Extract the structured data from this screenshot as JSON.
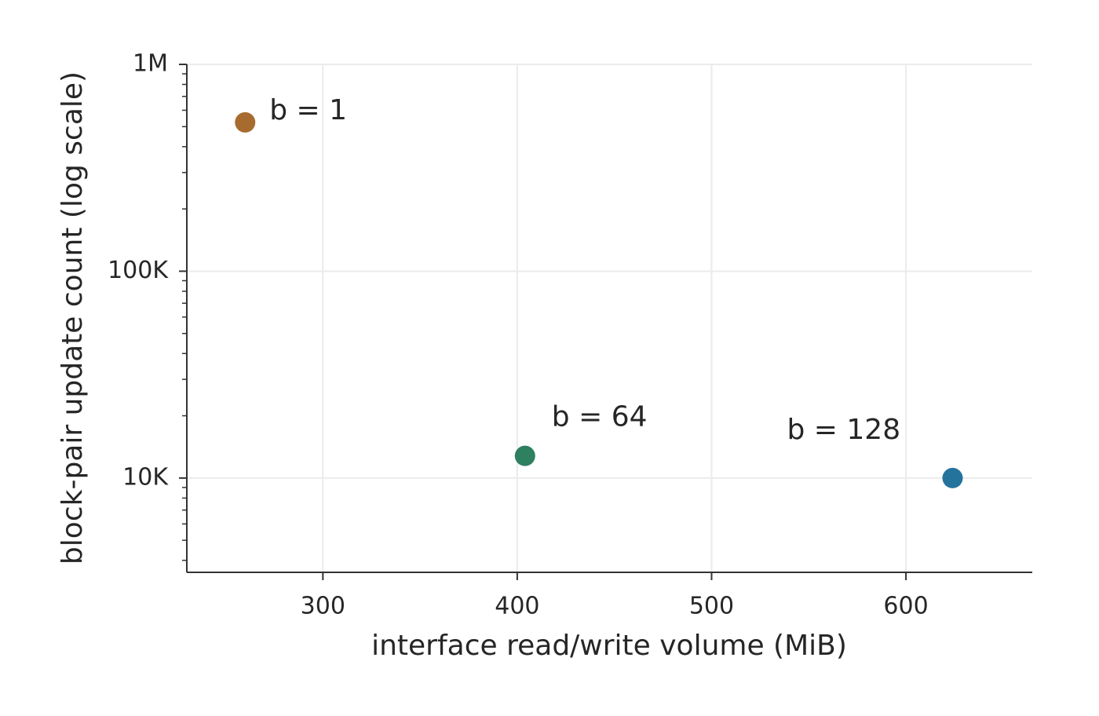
{
  "chart_data": {
    "type": "scatter",
    "x_label": "interface read/write volume (MiB)",
    "y_label": "block-pair update count (log scale)",
    "series": [
      {
        "name": "b = 1",
        "color": "#a86b2f",
        "x": [
          260
        ],
        "values": [
          524288
        ]
      },
      {
        "name": "b = 64",
        "color": "#2e8060",
        "x": [
          404
        ],
        "values": [
          12800
        ]
      },
      {
        "name": "b = 128",
        "color": "#24739c",
        "x": [
          624
        ],
        "values": [
          10000
        ]
      }
    ],
    "xlim": [
      230,
      665
    ],
    "xticks": [
      300,
      400,
      500,
      600
    ],
    "ylim": [
      3500,
      1000000
    ],
    "y_scale": "log",
    "yticks": [
      {
        "value": 10000,
        "label": "10K"
      },
      {
        "value": 100000,
        "label": "100K"
      },
      {
        "value": 1000000,
        "label": "1M"
      }
    ],
    "yminorticks": [
      4000,
      5000,
      6000,
      7000,
      8000,
      9000,
      20000,
      30000,
      40000,
      50000,
      60000,
      70000,
      80000,
      90000,
      200000,
      300000,
      400000,
      500000,
      600000,
      700000,
      800000,
      900000
    ],
    "grid": true
  }
}
